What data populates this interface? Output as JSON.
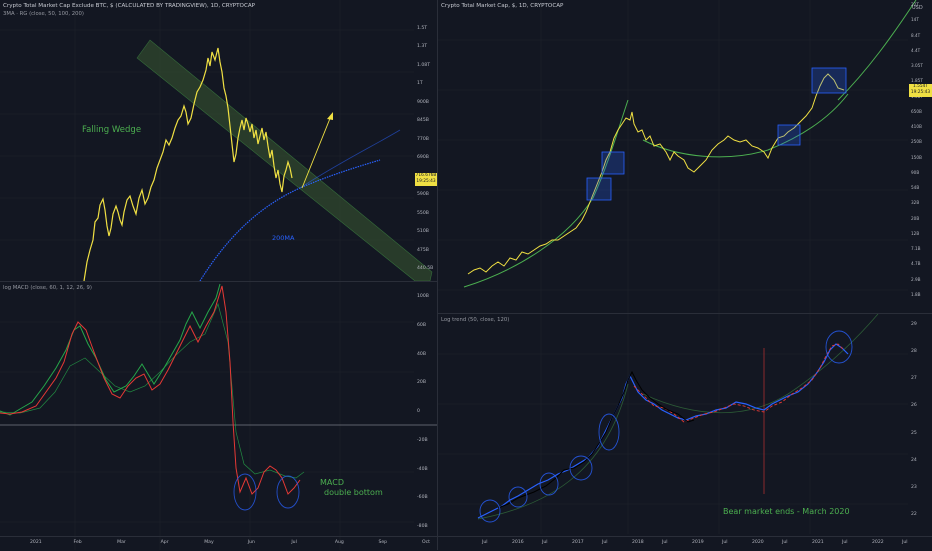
{
  "panels": {
    "tl": {
      "header": "Crypto Total Market Cap Exclude BTC, $ (CALCULATED BY TRADINGVIEW), 1D, CRYPTOCAP",
      "subheader": "3MA · RG (close, 50, 100, 200)",
      "annotation_wedge": "Falling Wedge",
      "annotation_ma": "200MA",
      "price_badge": "716.676B",
      "price_badge_time": "19:25:43"
    },
    "bl": {
      "header": "log MACD (close, 60, 1, 12, 26, 9)",
      "annotation_line1": "MACD",
      "annotation_line2": "double bottom"
    },
    "tr": {
      "header": "Crypto Total Market Cap, $, 1D, CRYPTOCAP",
      "currency": "USD",
      "price_badge": "1.554T",
      "price_badge_time": "19:25:43"
    },
    "br": {
      "header": "Log trend (50, close, 120)",
      "annotation": "Bear market ends - March 2020"
    }
  },
  "colors": {
    "background": "#131722",
    "grid": "#1e222d",
    "price_line": "#f0e043",
    "wedge_fill": "#3a5a32",
    "curve": "#4caf50",
    "ma_line": "#2962ff",
    "macd_up": "#26a64a",
    "macd_down": "#e53935",
    "box": "#2962ff",
    "annotation_green": "#4caf50",
    "badge": "#f0e043"
  },
  "chart_data": [
    {
      "type": "line",
      "title": "Crypto Total Market Cap Exclude BTC, $ (CALCULATED BY TRADINGVIEW), 1D, CRYPTOCAP",
      "x_ticks": [
        "2021",
        "Feb",
        "Mar",
        "Apr",
        "May",
        "Jun",
        "Jul",
        "Aug",
        "Sep",
        "Oct"
      ],
      "y_ticks": [
        "1.5T",
        "1.3T",
        "1.08T",
        "1T",
        "900B",
        "845B",
        "770B",
        "690B",
        "650B",
        "590B",
        "550B",
        "510B",
        "475B",
        "440.5B"
      ],
      "y_scale": "log",
      "series": [
        {
          "values": [
            405,
            470,
            560,
            620,
            590,
            655,
            715,
            680,
            745,
            840,
            920,
            860,
            980,
            1080,
            1180,
            1400,
            1550,
            1420,
            1020,
            880,
            900,
            755,
            820,
            717
          ]
        }
      ]
    },
    {
      "type": "line",
      "title": "log MACD (close, 60, 1, 12, 26, 9)",
      "y_ticks": [
        "100B",
        "60B",
        "40B",
        "20B",
        "0",
        "-20B",
        "-40B",
        "-60B",
        "-80B"
      ],
      "series": [
        {
          "values": [
            5,
            3,
            8,
            20,
            55,
            66,
            50,
            28,
            15,
            32,
            22,
            40,
            55,
            70,
            100,
            80,
            90,
            102,
            -10,
            -55,
            -62,
            -38,
            -48,
            -60,
            -45
          ]
        }
      ]
    },
    {
      "type": "line",
      "title": "Crypto Total Market Cap, $, 1D, CRYPTOCAP",
      "x_ticks": [
        "Jul",
        "2016",
        "Jul",
        "2017",
        "Jul",
        "2018",
        "Jul",
        "2019",
        "Jul",
        "2020",
        "Jul",
        "2021",
        "Jul",
        "2022",
        "Jul"
      ],
      "y_ticks": [
        "22T",
        "14T",
        "8.4T",
        "4.4T",
        "3.05T",
        "1.85T",
        "1.08T",
        "650B",
        "410B",
        "250B",
        "150B",
        "90B",
        "54B",
        "32B",
        "20B",
        "12B",
        "7.1B",
        "4.7B",
        "2.9B",
        "1.8B"
      ],
      "y_scale": "log"
    },
    {
      "type": "line",
      "title": "Log trend (50, close, 120)",
      "y_ticks": [
        "29",
        "28",
        "27",
        "26",
        "25",
        "24",
        "23",
        "22"
      ]
    }
  ]
}
